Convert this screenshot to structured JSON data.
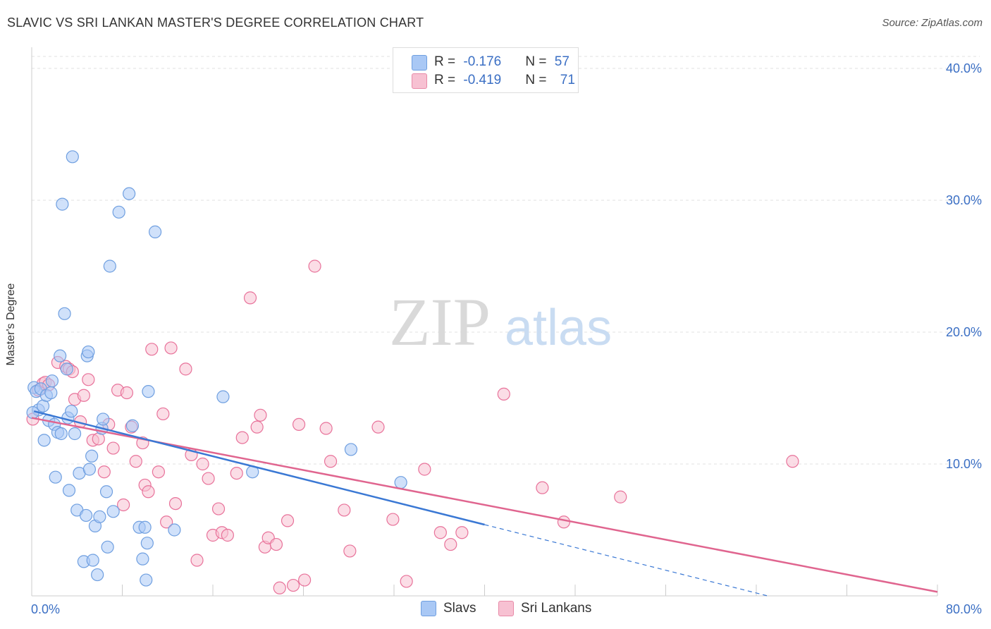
{
  "title": "SLAVIC VS SRI LANKAN MASTER'S DEGREE CORRELATION CHART",
  "source": "Source: ZipAtlas.com",
  "watermark": {
    "zip": "ZIP",
    "atlas": "atlas"
  },
  "legend": {
    "rows": [
      {
        "r_label": "R = ",
        "r_value": "-0.176",
        "n_label": "N = ",
        "n_value": "57",
        "color": "#a9c8f5",
        "border": "#6f9fe0"
      },
      {
        "r_label": "R = ",
        "r_value": "-0.419",
        "n_label": "N = ",
        "n_value": "71",
        "color": "#f7c1d2",
        "border": "#e88aa8"
      }
    ]
  },
  "bottom_legend": [
    {
      "label": "Slavs",
      "color": "#a9c8f5",
      "border": "#6f9fe0"
    },
    {
      "label": "Sri Lankans",
      "color": "#f7c1d2",
      "border": "#e88aa8"
    }
  ],
  "axes": {
    "ylabel": "Master's Degree",
    "x_tick_left": "0.0%",
    "x_tick_right": "80.0%",
    "y_ticks": [
      "10.0%",
      "20.0%",
      "30.0%",
      "40.0%"
    ]
  },
  "chart_data": {
    "type": "scatter",
    "xlabel": "",
    "ylabel": "Master's Degree",
    "xlim": [
      0,
      80
    ],
    "ylim": [
      0,
      40
    ],
    "y_ticks": [
      10,
      20,
      30,
      40
    ],
    "grid": true,
    "legend_placement": "top-center",
    "series": [
      {
        "name": "Slavs",
        "color": "#6f9fe0",
        "fill": "#a9c8f5",
        "trend": {
          "x": [
            0.2,
            40
          ],
          "y": [
            14.0,
            5.4
          ],
          "dashed_to": [
            65,
            0
          ]
        },
        "points": [
          [
            0.2,
            15.8
          ],
          [
            0.4,
            15.5
          ],
          [
            0.6,
            14.1
          ],
          [
            0.8,
            15.7
          ],
          [
            1.0,
            14.4
          ],
          [
            1.1,
            11.8
          ],
          [
            1.3,
            15.2
          ],
          [
            1.5,
            13.3
          ],
          [
            1.7,
            15.4
          ],
          [
            1.8,
            16.3
          ],
          [
            2.0,
            13.0
          ],
          [
            2.1,
            9.0
          ],
          [
            2.3,
            12.4
          ],
          [
            2.5,
            18.2
          ],
          [
            2.6,
            12.3
          ],
          [
            2.7,
            29.7
          ],
          [
            2.9,
            21.4
          ],
          [
            3.1,
            17.2
          ],
          [
            3.2,
            13.5
          ],
          [
            3.3,
            8.0
          ],
          [
            3.5,
            14.0
          ],
          [
            3.6,
            33.3
          ],
          [
            3.8,
            12.3
          ],
          [
            4.0,
            6.5
          ],
          [
            4.2,
            9.3
          ],
          [
            4.6,
            2.6
          ],
          [
            4.8,
            6.1
          ],
          [
            4.9,
            18.2
          ],
          [
            5.0,
            18.5
          ],
          [
            5.1,
            9.6
          ],
          [
            5.3,
            10.6
          ],
          [
            5.4,
            2.7
          ],
          [
            5.6,
            5.3
          ],
          [
            5.8,
            1.6
          ],
          [
            6.0,
            6.0
          ],
          [
            6.2,
            12.7
          ],
          [
            6.3,
            13.4
          ],
          [
            6.6,
            7.9
          ],
          [
            6.7,
            3.7
          ],
          [
            6.9,
            25.0
          ],
          [
            7.2,
            6.4
          ],
          [
            7.7,
            29.1
          ],
          [
            8.6,
            30.5
          ],
          [
            8.9,
            12.9
          ],
          [
            9.5,
            5.2
          ],
          [
            9.8,
            2.8
          ],
          [
            10.0,
            5.2
          ],
          [
            10.1,
            1.2
          ],
          [
            10.2,
            4.0
          ],
          [
            10.3,
            15.5
          ],
          [
            10.9,
            27.6
          ],
          [
            12.6,
            5.0
          ],
          [
            16.9,
            15.1
          ],
          [
            19.5,
            9.4
          ],
          [
            28.2,
            11.1
          ],
          [
            32.6,
            8.6
          ],
          [
            0.1,
            13.9
          ]
        ]
      },
      {
        "name": "Sri Lankans",
        "color": "#e8729a",
        "fill": "#f7c1d2",
        "trend": {
          "x": [
            0,
            80
          ],
          "y": [
            13.5,
            0.3
          ]
        },
        "points": [
          [
            0.1,
            13.4
          ],
          [
            0.6,
            15.6
          ],
          [
            1.0,
            16.1
          ],
          [
            1.2,
            16.2
          ],
          [
            1.5,
            16.0
          ],
          [
            2.3,
            17.7
          ],
          [
            3.0,
            17.4
          ],
          [
            3.3,
            17.2
          ],
          [
            3.6,
            17.0
          ],
          [
            3.8,
            14.9
          ],
          [
            4.3,
            13.2
          ],
          [
            4.6,
            15.2
          ],
          [
            5.0,
            16.4
          ],
          [
            5.4,
            11.8
          ],
          [
            5.9,
            11.9
          ],
          [
            6.4,
            9.4
          ],
          [
            6.8,
            13.0
          ],
          [
            7.2,
            11.2
          ],
          [
            7.6,
            15.6
          ],
          [
            8.1,
            6.9
          ],
          [
            8.4,
            15.4
          ],
          [
            8.8,
            12.8
          ],
          [
            9.2,
            10.2
          ],
          [
            9.8,
            11.6
          ],
          [
            10.0,
            8.4
          ],
          [
            10.3,
            7.9
          ],
          [
            10.6,
            18.7
          ],
          [
            11.2,
            9.4
          ],
          [
            11.6,
            13.8
          ],
          [
            11.9,
            5.6
          ],
          [
            12.3,
            18.8
          ],
          [
            12.7,
            7.0
          ],
          [
            13.6,
            17.2
          ],
          [
            14.1,
            10.7
          ],
          [
            14.6,
            2.7
          ],
          [
            15.1,
            10.0
          ],
          [
            15.6,
            8.9
          ],
          [
            16.0,
            4.6
          ],
          [
            16.5,
            6.6
          ],
          [
            16.8,
            4.8
          ],
          [
            17.3,
            4.6
          ],
          [
            18.1,
            9.3
          ],
          [
            18.6,
            12.0
          ],
          [
            19.3,
            22.6
          ],
          [
            19.9,
            12.8
          ],
          [
            20.2,
            13.7
          ],
          [
            20.6,
            3.7
          ],
          [
            20.9,
            4.4
          ],
          [
            21.6,
            3.9
          ],
          [
            21.9,
            0.6
          ],
          [
            22.6,
            5.7
          ],
          [
            23.1,
            0.8
          ],
          [
            23.6,
            13.0
          ],
          [
            24.1,
            1.2
          ],
          [
            25.0,
            25.0
          ],
          [
            26.0,
            12.7
          ],
          [
            26.4,
            10.2
          ],
          [
            27.6,
            6.5
          ],
          [
            28.1,
            3.4
          ],
          [
            30.6,
            12.8
          ],
          [
            31.9,
            5.8
          ],
          [
            33.1,
            1.1
          ],
          [
            34.7,
            9.6
          ],
          [
            36.1,
            4.8
          ],
          [
            37.0,
            3.9
          ],
          [
            38.0,
            4.8
          ],
          [
            41.7,
            15.3
          ],
          [
            45.1,
            8.2
          ],
          [
            47.0,
            5.6
          ],
          [
            52.0,
            7.5
          ],
          [
            67.2,
            10.2
          ]
        ]
      }
    ]
  }
}
